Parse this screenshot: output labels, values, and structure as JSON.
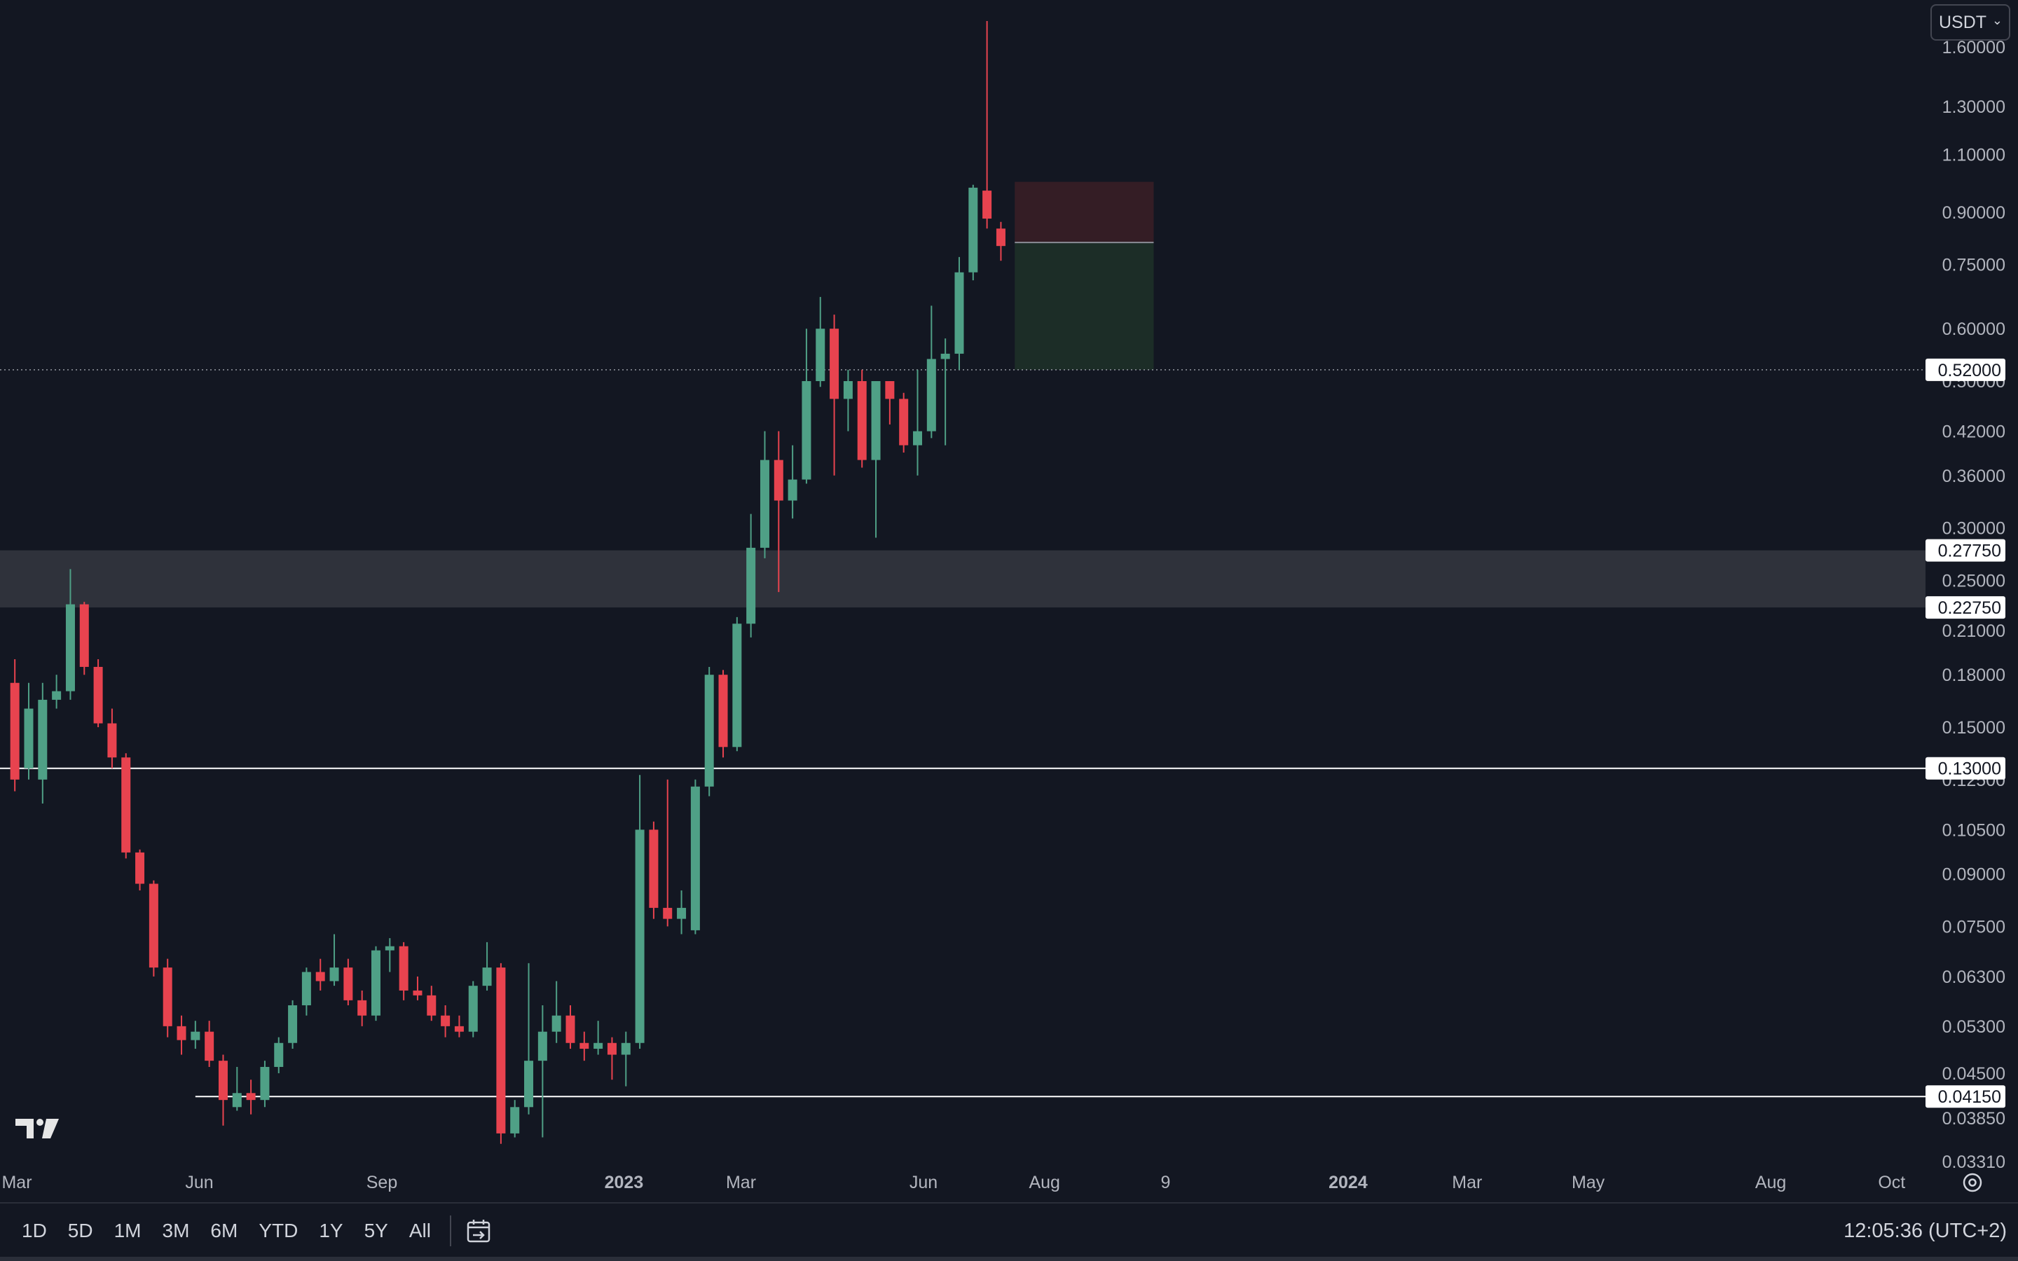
{
  "currency": {
    "label": "USDT"
  },
  "toolbar": {
    "ranges": [
      "1D",
      "5D",
      "1M",
      "3M",
      "6M",
      "YTD",
      "1Y",
      "5Y",
      "All"
    ],
    "clock": "12:05:36 (UTC+2)"
  },
  "icons": {
    "logo": "tradingview-logo-icon",
    "goto_date": "calendar-goto-icon",
    "settings": "gear-icon"
  },
  "chart_data": {
    "type": "candlestick",
    "scale": "log",
    "timeframe": "weekly",
    "ylim": [
      0.0331,
      1.75
    ],
    "y_ticks": [
      "1.60000",
      "1.30000",
      "1.10000",
      "0.90000",
      "0.75000",
      "0.60000",
      "0.50000",
      "0.42000",
      "0.36000",
      "0.30000",
      "0.25000",
      "0.21000",
      "0.18000",
      "0.15000",
      "0.12500",
      "0.10500",
      "0.09000",
      "0.07500",
      "0.06300",
      "0.05300",
      "0.04500",
      "0.03850",
      "0.03310"
    ],
    "x_labels": [
      {
        "label": "Mar",
        "date": "2022-03-01",
        "bold": false
      },
      {
        "label": "Jun",
        "date": "2022-06-01",
        "bold": false
      },
      {
        "label": "Sep",
        "date": "2022-09-01",
        "bold": false
      },
      {
        "label": "2023",
        "date": "2023-01-01",
        "bold": true
      },
      {
        "label": "Mar",
        "date": "2023-03-01",
        "bold": false
      },
      {
        "label": "Jun",
        "date": "2023-06-01",
        "bold": false
      },
      {
        "label": "Aug",
        "date": "2023-08-01",
        "bold": false
      },
      {
        "label": "9",
        "date": "2023-10-01",
        "bold": false
      },
      {
        "label": "2024",
        "date": "2024-01-01",
        "bold": true
      },
      {
        "label": "Mar",
        "date": "2024-03-01",
        "bold": false
      },
      {
        "label": "May",
        "date": "2024-05-01",
        "bold": false
      },
      {
        "label": "Aug",
        "date": "2024-08-01",
        "bold": false
      },
      {
        "label": "Oct",
        "date": "2024-10-01",
        "bold": false
      }
    ],
    "levels": [
      {
        "price": 0.52,
        "label": "0.52000",
        "style": "dotted"
      },
      {
        "price": 0.2775,
        "label": "0.27750",
        "style": "zone-top"
      },
      {
        "price": 0.2275,
        "label": "0.22750",
        "style": "zone-bottom"
      },
      {
        "price": 0.13,
        "label": "0.13000",
        "style": "solid"
      },
      {
        "price": 0.0415,
        "label": "0.04150",
        "style": "solid"
      }
    ],
    "zone": {
      "from": 0.2275,
      "to": 0.2775
    },
    "position_box": {
      "start": "2023-07-17",
      "end": "2023-09-25",
      "target": 0.52,
      "entry": 0.81,
      "stop": 1.0
    },
    "candles": [
      {
        "d": "2022-02-28",
        "o": 0.175,
        "h": 0.19,
        "l": 0.12,
        "c": 0.125
      },
      {
        "d": "2022-03-07",
        "o": 0.13,
        "h": 0.175,
        "l": 0.125,
        "c": 0.16
      },
      {
        "d": "2022-03-14",
        "o": 0.125,
        "h": 0.175,
        "l": 0.115,
        "c": 0.165
      },
      {
        "d": "2022-03-21",
        "o": 0.165,
        "h": 0.18,
        "l": 0.16,
        "c": 0.17
      },
      {
        "d": "2022-03-28",
        "o": 0.17,
        "h": 0.26,
        "l": 0.165,
        "c": 0.23
      },
      {
        "d": "2022-04-04",
        "o": 0.23,
        "h": 0.232,
        "l": 0.18,
        "c": 0.185
      },
      {
        "d": "2022-04-11",
        "o": 0.185,
        "h": 0.19,
        "l": 0.15,
        "c": 0.152
      },
      {
        "d": "2022-04-18",
        "o": 0.152,
        "h": 0.16,
        "l": 0.13,
        "c": 0.135
      },
      {
        "d": "2022-04-25",
        "o": 0.135,
        "h": 0.137,
        "l": 0.095,
        "c": 0.097
      },
      {
        "d": "2022-05-02",
        "o": 0.097,
        "h": 0.098,
        "l": 0.085,
        "c": 0.087
      },
      {
        "d": "2022-05-09",
        "o": 0.087,
        "h": 0.088,
        "l": 0.063,
        "c": 0.065
      },
      {
        "d": "2022-05-16",
        "o": 0.065,
        "h": 0.067,
        "l": 0.051,
        "c": 0.053
      },
      {
        "d": "2022-05-23",
        "o": 0.053,
        "h": 0.055,
        "l": 0.048,
        "c": 0.0505
      },
      {
        "d": "2022-05-30",
        "o": 0.0505,
        "h": 0.054,
        "l": 0.049,
        "c": 0.052
      },
      {
        "d": "2022-06-06",
        "o": 0.052,
        "h": 0.054,
        "l": 0.046,
        "c": 0.047
      },
      {
        "d": "2022-06-13",
        "o": 0.047,
        "h": 0.048,
        "l": 0.0375,
        "c": 0.041
      },
      {
        "d": "2022-06-20",
        "o": 0.04,
        "h": 0.046,
        "l": 0.0395,
        "c": 0.042
      },
      {
        "d": "2022-06-27",
        "o": 0.042,
        "h": 0.044,
        "l": 0.039,
        "c": 0.041
      },
      {
        "d": "2022-07-04",
        "o": 0.041,
        "h": 0.047,
        "l": 0.04,
        "c": 0.046
      },
      {
        "d": "2022-07-11",
        "o": 0.046,
        "h": 0.051,
        "l": 0.045,
        "c": 0.05
      },
      {
        "d": "2022-07-18",
        "o": 0.05,
        "h": 0.058,
        "l": 0.049,
        "c": 0.057
      },
      {
        "d": "2022-07-25",
        "o": 0.057,
        "h": 0.065,
        "l": 0.055,
        "c": 0.064
      },
      {
        "d": "2022-08-01",
        "o": 0.064,
        "h": 0.067,
        "l": 0.06,
        "c": 0.062
      },
      {
        "d": "2022-08-08",
        "o": 0.062,
        "h": 0.073,
        "l": 0.061,
        "c": 0.065
      },
      {
        "d": "2022-08-15",
        "o": 0.065,
        "h": 0.067,
        "l": 0.057,
        "c": 0.058
      },
      {
        "d": "2022-08-22",
        "o": 0.058,
        "h": 0.06,
        "l": 0.053,
        "c": 0.055
      },
      {
        "d": "2022-08-29",
        "o": 0.055,
        "h": 0.07,
        "l": 0.054,
        "c": 0.069
      },
      {
        "d": "2022-09-05",
        "o": 0.069,
        "h": 0.072,
        "l": 0.064,
        "c": 0.07
      },
      {
        "d": "2022-09-12",
        "o": 0.07,
        "h": 0.071,
        "l": 0.058,
        "c": 0.06
      },
      {
        "d": "2022-09-19",
        "o": 0.06,
        "h": 0.063,
        "l": 0.058,
        "c": 0.059
      },
      {
        "d": "2022-09-26",
        "o": 0.059,
        "h": 0.061,
        "l": 0.054,
        "c": 0.055
      },
      {
        "d": "2022-10-03",
        "o": 0.055,
        "h": 0.057,
        "l": 0.051,
        "c": 0.053
      },
      {
        "d": "2022-10-10",
        "o": 0.053,
        "h": 0.055,
        "l": 0.051,
        "c": 0.052
      },
      {
        "d": "2022-10-17",
        "o": 0.052,
        "h": 0.062,
        "l": 0.051,
        "c": 0.061
      },
      {
        "d": "2022-10-24",
        "o": 0.061,
        "h": 0.071,
        "l": 0.06,
        "c": 0.065
      },
      {
        "d": "2022-10-31",
        "o": 0.065,
        "h": 0.066,
        "l": 0.0352,
        "c": 0.0365
      },
      {
        "d": "2022-11-07",
        "o": 0.0365,
        "h": 0.041,
        "l": 0.036,
        "c": 0.04
      },
      {
        "d": "2022-11-14",
        "o": 0.04,
        "h": 0.066,
        "l": 0.039,
        "c": 0.047
      },
      {
        "d": "2022-11-21",
        "o": 0.047,
        "h": 0.057,
        "l": 0.036,
        "c": 0.052
      },
      {
        "d": "2022-11-28",
        "o": 0.052,
        "h": 0.062,
        "l": 0.05,
        "c": 0.055
      },
      {
        "d": "2022-12-05",
        "o": 0.055,
        "h": 0.057,
        "l": 0.049,
        "c": 0.05
      },
      {
        "d": "2022-12-12",
        "o": 0.05,
        "h": 0.052,
        "l": 0.047,
        "c": 0.049
      },
      {
        "d": "2022-12-19",
        "o": 0.049,
        "h": 0.054,
        "l": 0.048,
        "c": 0.05
      },
      {
        "d": "2022-12-26",
        "o": 0.05,
        "h": 0.051,
        "l": 0.044,
        "c": 0.048
      },
      {
        "d": "2023-01-02",
        "o": 0.048,
        "h": 0.052,
        "l": 0.043,
        "c": 0.05
      },
      {
        "d": "2023-01-09",
        "o": 0.05,
        "h": 0.127,
        "l": 0.049,
        "c": 0.105
      },
      {
        "d": "2023-01-16",
        "o": 0.105,
        "h": 0.108,
        "l": 0.077,
        "c": 0.08
      },
      {
        "d": "2023-01-23",
        "o": 0.08,
        "h": 0.125,
        "l": 0.075,
        "c": 0.077
      },
      {
        "d": "2023-01-30",
        "o": 0.077,
        "h": 0.085,
        "l": 0.073,
        "c": 0.08
      },
      {
        "d": "2023-02-06",
        "o": 0.074,
        "h": 0.125,
        "l": 0.073,
        "c": 0.122
      },
      {
        "d": "2023-02-13",
        "o": 0.122,
        "h": 0.185,
        "l": 0.118,
        "c": 0.18
      },
      {
        "d": "2023-02-20",
        "o": 0.18,
        "h": 0.183,
        "l": 0.135,
        "c": 0.14
      },
      {
        "d": "2023-02-27",
        "o": 0.14,
        "h": 0.22,
        "l": 0.138,
        "c": 0.215
      },
      {
        "d": "2023-03-06",
        "o": 0.215,
        "h": 0.315,
        "l": 0.205,
        "c": 0.28
      },
      {
        "d": "2023-03-13",
        "o": 0.28,
        "h": 0.42,
        "l": 0.27,
        "c": 0.38
      },
      {
        "d": "2023-03-20",
        "o": 0.38,
        "h": 0.42,
        "l": 0.24,
        "c": 0.33
      },
      {
        "d": "2023-03-27",
        "o": 0.33,
        "h": 0.4,
        "l": 0.31,
        "c": 0.355
      },
      {
        "d": "2023-04-03",
        "o": 0.355,
        "h": 0.6,
        "l": 0.35,
        "c": 0.5
      },
      {
        "d": "2023-04-10",
        "o": 0.5,
        "h": 0.67,
        "l": 0.49,
        "c": 0.6
      },
      {
        "d": "2023-04-17",
        "o": 0.6,
        "h": 0.63,
        "l": 0.36,
        "c": 0.47
      },
      {
        "d": "2023-04-24",
        "o": 0.47,
        "h": 0.52,
        "l": 0.42,
        "c": 0.5
      },
      {
        "d": "2023-05-01",
        "o": 0.5,
        "h": 0.52,
        "l": 0.37,
        "c": 0.38
      },
      {
        "d": "2023-05-08",
        "o": 0.38,
        "h": 0.5,
        "l": 0.29,
        "c": 0.5
      },
      {
        "d": "2023-05-15",
        "o": 0.5,
        "h": 0.5,
        "l": 0.43,
        "c": 0.47
      },
      {
        "d": "2023-05-22",
        "o": 0.47,
        "h": 0.48,
        "l": 0.39,
        "c": 0.4
      },
      {
        "d": "2023-05-29",
        "o": 0.4,
        "h": 0.52,
        "l": 0.36,
        "c": 0.42
      },
      {
        "d": "2023-06-05",
        "o": 0.42,
        "h": 0.65,
        "l": 0.41,
        "c": 0.54
      },
      {
        "d": "2023-06-12",
        "o": 0.54,
        "h": 0.58,
        "l": 0.4,
        "c": 0.55
      },
      {
        "d": "2023-06-19",
        "o": 0.55,
        "h": 0.77,
        "l": 0.52,
        "c": 0.73
      },
      {
        "d": "2023-06-26",
        "o": 0.73,
        "h": 0.99,
        "l": 0.71,
        "c": 0.98
      },
      {
        "d": "2023-07-03",
        "o": 0.97,
        "h": 1.75,
        "l": 0.85,
        "c": 0.88
      },
      {
        "d": "2023-07-10",
        "o": 0.85,
        "h": 0.87,
        "l": 0.76,
        "c": 0.8
      }
    ]
  }
}
